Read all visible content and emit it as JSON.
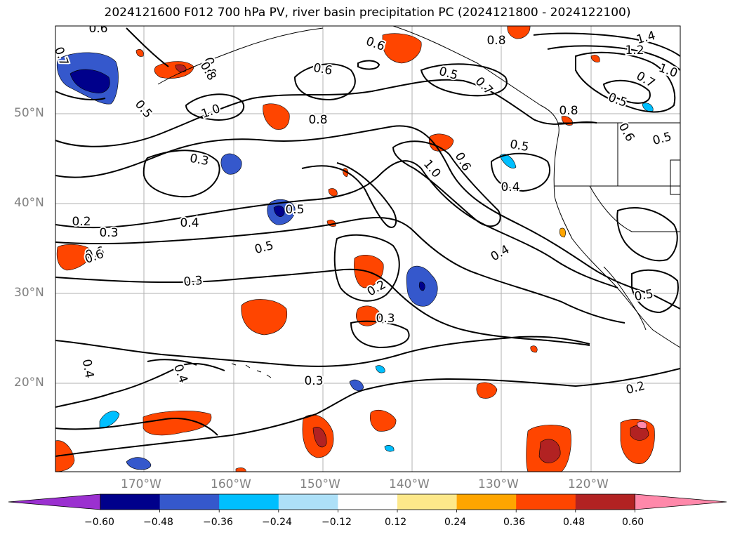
{
  "title": "2024121600 F012 700 hPa PV, river basin precipitation PC (2024121800 - 2024122100)",
  "lat_labels": [
    "50°N",
    "40°N",
    "30°N",
    "20°N"
  ],
  "lon_labels": [
    "170°W",
    "160°W",
    "150°W",
    "140°W",
    "130°W",
    "120°W"
  ],
  "colorbar": {
    "ticks": [
      "−0.60",
      "−0.48",
      "−0.36",
      "−0.24",
      "−0.12",
      "0.12",
      "0.24",
      "0.36",
      "0.48",
      "0.60"
    ],
    "colors": [
      "#9b30d0",
      "#00008b",
      "#3558cc",
      "#00bfff",
      "#ade0f8",
      "#ffffff",
      "#fde88a",
      "#ffa500",
      "#ff4500",
      "#b22222",
      "#ff88aa"
    ]
  },
  "contour_labels": [
    "0.6",
    "0.7",
    "0.8",
    "0.5",
    "1.0",
    "0.3",
    "0.2",
    "0.4",
    "0.5",
    "0.6",
    "0.3",
    "0.6",
    "0.6",
    "0.5",
    "0.8",
    "0.8",
    "0.5",
    "0.7",
    "1.0",
    "0.6",
    "0.4",
    "0.2",
    "0.3",
    "0.3",
    "0.4",
    "0.3",
    "0.4",
    "0.8",
    "1.4",
    "1.2",
    "1.0",
    "0.7",
    "0.5",
    "0.8",
    "0.5",
    "0.5",
    "0.6",
    "0.6",
    "0.4",
    "0.5",
    "0.2"
  ]
}
